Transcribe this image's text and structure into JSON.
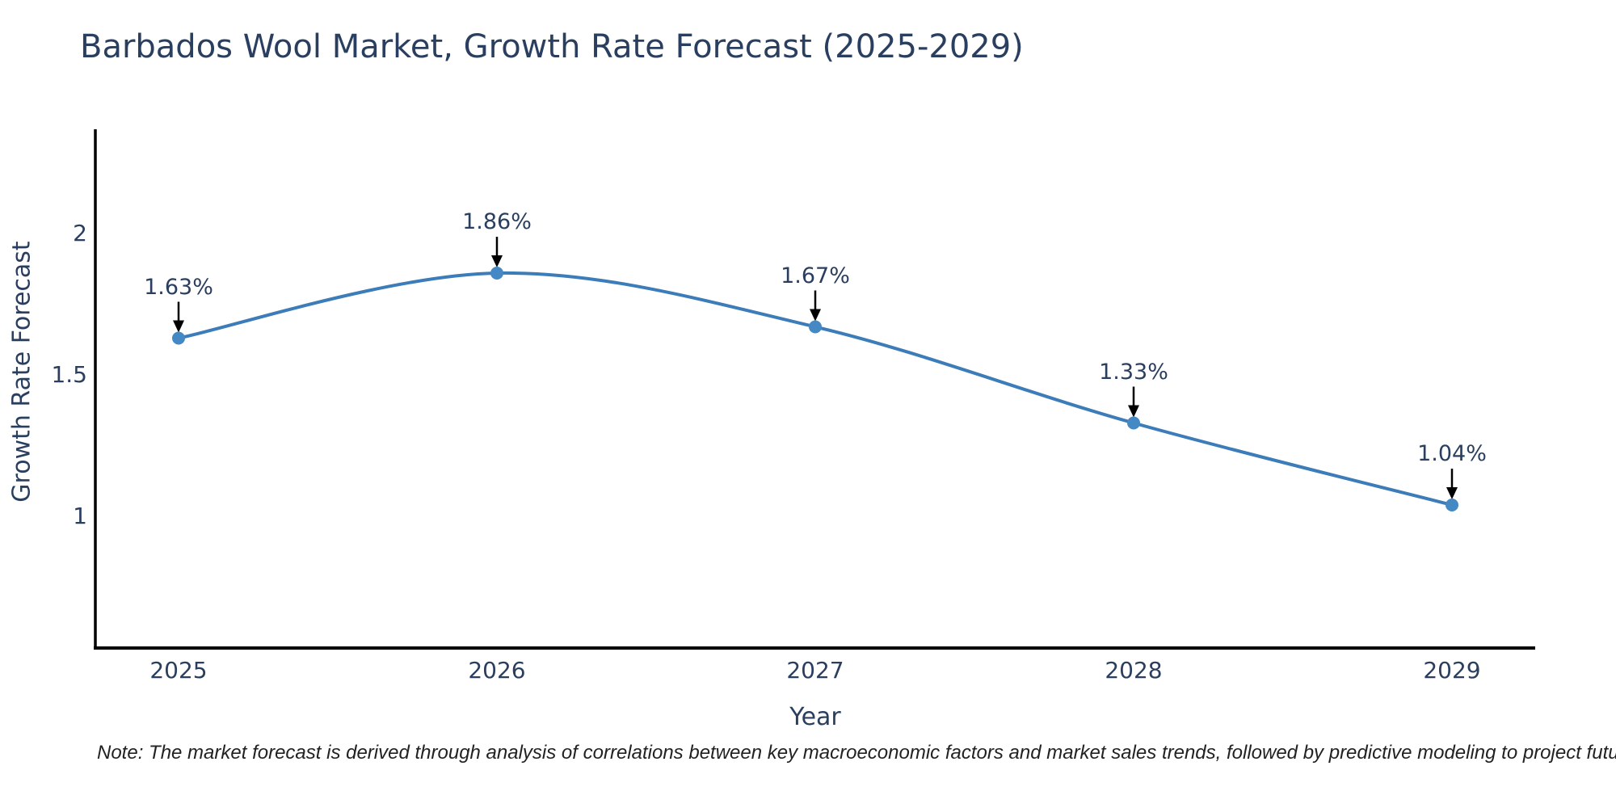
{
  "title": "Barbados Wool Market, Growth Rate Forecast (2025-2029)",
  "footnote": "Note: The market forecast is derived through analysis of correlations between key macroeconomic factors and market sales trends, followed by predictive modeling to project future sales",
  "chart_data": {
    "type": "line",
    "line_shape": "spline",
    "title": "Barbados Wool Market, Growth Rate Forecast (2025-2029)",
    "xlabel": "Year",
    "ylabel": "Growth Rate Forecast",
    "categories": [
      "2025",
      "2026",
      "2027",
      "2028",
      "2029"
    ],
    "values": [
      1.63,
      1.86,
      1.67,
      1.33,
      1.04
    ],
    "point_labels": [
      "1.63%",
      "1.86%",
      "1.67%",
      "1.33%",
      "1.04%"
    ],
    "ytick_values": [
      2,
      1.5,
      1
    ],
    "ytick_labels": [
      "2",
      "1.5",
      "1"
    ],
    "ylim": [
      0.53,
      2.37
    ],
    "grid": "off",
    "legend": "none",
    "annotation_style": "black-down-arrow-to-marker",
    "colors": {
      "line": "#3C7CB8",
      "marker": "#4489C4",
      "axis": "#000000",
      "text": "#2a3f5f",
      "arrow": "#000000",
      "background": "#ffffff"
    }
  }
}
